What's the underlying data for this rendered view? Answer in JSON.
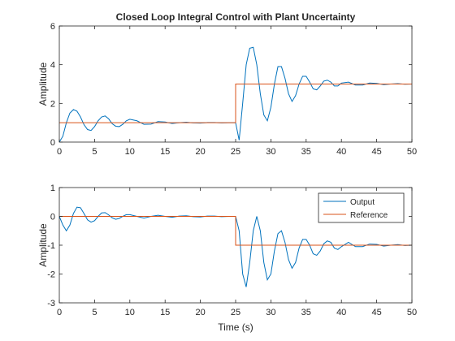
{
  "figure": {
    "title": "Closed Loop Integral Control with Plant Uncertainty"
  },
  "colors": {
    "output": "#0072BD",
    "reference": "#D95319",
    "axis": "#262626",
    "background": "#ffffff"
  },
  "chart_data": [
    {
      "type": "line",
      "title": "Closed Loop Integral Control with Plant Uncertainty",
      "xlabel": "",
      "ylabel": "Amplitude",
      "xlim": [
        0,
        50
      ],
      "ylim": [
        0,
        6
      ],
      "xticks": [
        "0",
        "5",
        "10",
        "15",
        "20",
        "25",
        "30",
        "35",
        "40",
        "45",
        "50"
      ],
      "yticks": [
        "0",
        "2",
        "4",
        "6"
      ],
      "grid": false,
      "legend": "none",
      "series": [
        {
          "x": [
            0,
            0.5,
            1,
            1.5,
            2,
            2.5,
            3,
            3.5,
            4,
            4.5,
            5,
            5.5,
            6,
            6.5,
            7,
            7.5,
            8,
            8.5,
            9,
            9.5,
            10,
            11,
            12,
            13,
            14,
            15,
            16,
            17,
            18,
            19,
            20,
            21,
            22,
            23,
            24,
            24.99,
            25,
            25.5,
            26,
            26.5,
            27,
            27.5,
            28,
            28.5,
            29,
            29.5,
            30,
            30.5,
            31,
            31.5,
            32,
            32.5,
            33,
            33.5,
            34,
            34.5,
            35,
            35.5,
            36,
            36.5,
            37,
            37.5,
            38,
            38.5,
            39,
            39.5,
            40,
            41,
            42,
            43,
            44,
            45,
            46,
            47,
            48,
            49,
            50
          ],
          "values": [
            0,
            0.3,
            1.0,
            1.5,
            1.68,
            1.6,
            1.3,
            0.9,
            0.65,
            0.6,
            0.8,
            1.1,
            1.3,
            1.35,
            1.2,
            0.95,
            0.82,
            0.8,
            0.92,
            1.1,
            1.18,
            1.1,
            0.92,
            0.93,
            1.06,
            1.04,
            0.96,
            1.0,
            1.03,
            0.99,
            0.98,
            1.01,
            1.01,
            0.99,
            1.0,
            1.0,
            1.0,
            0.1,
            2.0,
            4.0,
            4.85,
            4.9,
            4.0,
            2.5,
            1.4,
            1.1,
            1.8,
            3.0,
            3.9,
            3.9,
            3.3,
            2.5,
            2.1,
            2.4,
            3.0,
            3.4,
            3.4,
            3.1,
            2.75,
            2.7,
            2.9,
            3.15,
            3.2,
            3.1,
            2.9,
            2.9,
            3.05,
            3.1,
            2.95,
            2.95,
            3.05,
            3.03,
            2.97,
            3.0,
            3.02,
            2.99,
            3.0
          ]
        },
        {
          "x": [
            0,
            25,
            25,
            50
          ],
          "values": [
            1,
            1,
            3,
            3
          ]
        }
      ]
    },
    {
      "type": "line",
      "title": "",
      "xlabel": "Time (s)",
      "ylabel": "Amplitude",
      "xlim": [
        0,
        50
      ],
      "ylim": [
        -3,
        1
      ],
      "xticks": [
        "0",
        "5",
        "10",
        "15",
        "20",
        "25",
        "30",
        "35",
        "40",
        "45",
        "50"
      ],
      "yticks": [
        "-3",
        "-2",
        "-1",
        "0",
        "1"
      ],
      "grid": false,
      "legend": "top-right",
      "series": [
        {
          "name": "Output",
          "x": [
            0,
            0.5,
            1,
            1.5,
            2,
            2.5,
            3,
            3.5,
            4,
            4.5,
            5,
            5.5,
            6,
            6.5,
            7,
            7.5,
            8,
            8.5,
            9,
            9.5,
            10,
            11,
            12,
            13,
            14,
            15,
            16,
            17,
            18,
            19,
            20,
            21,
            22,
            23,
            24,
            24.99,
            25,
            25.5,
            26,
            26.5,
            27,
            27.5,
            28,
            28.5,
            29,
            29.5,
            30,
            30.5,
            31,
            31.5,
            32,
            32.5,
            33,
            33.5,
            34,
            34.5,
            35,
            35.5,
            36,
            36.5,
            37,
            37.5,
            38,
            38.5,
            39,
            39.5,
            40,
            41,
            42,
            43,
            44,
            45,
            46,
            47,
            48,
            49,
            50
          ],
          "values": [
            0,
            -0.3,
            -0.5,
            -0.3,
            0.1,
            0.32,
            0.3,
            0.1,
            -0.12,
            -0.2,
            -0.15,
            0.0,
            0.12,
            0.13,
            0.05,
            -0.05,
            -0.1,
            -0.07,
            0.0,
            0.06,
            0.06,
            0.0,
            -0.06,
            0.0,
            0.04,
            0.0,
            -0.03,
            0.01,
            0.02,
            -0.01,
            -0.02,
            0.01,
            0.01,
            -0.01,
            0.0,
            0.0,
            0.0,
            -0.5,
            -2.0,
            -2.45,
            -1.6,
            -0.5,
            0.0,
            -0.5,
            -1.6,
            -2.2,
            -2.0,
            -1.2,
            -0.6,
            -0.5,
            -0.9,
            -1.5,
            -1.8,
            -1.6,
            -1.1,
            -0.8,
            -0.8,
            -1.0,
            -1.3,
            -1.35,
            -1.2,
            -0.95,
            -0.85,
            -0.9,
            -1.1,
            -1.15,
            -1.05,
            -0.9,
            -1.05,
            -1.05,
            -0.96,
            -0.97,
            -1.03,
            -1.0,
            -0.98,
            -1.01,
            -1.0
          ]
        },
        {
          "name": "Reference",
          "x": [
            0,
            25,
            25,
            50
          ],
          "values": [
            0,
            0,
            -1,
            -1
          ]
        }
      ]
    }
  ]
}
